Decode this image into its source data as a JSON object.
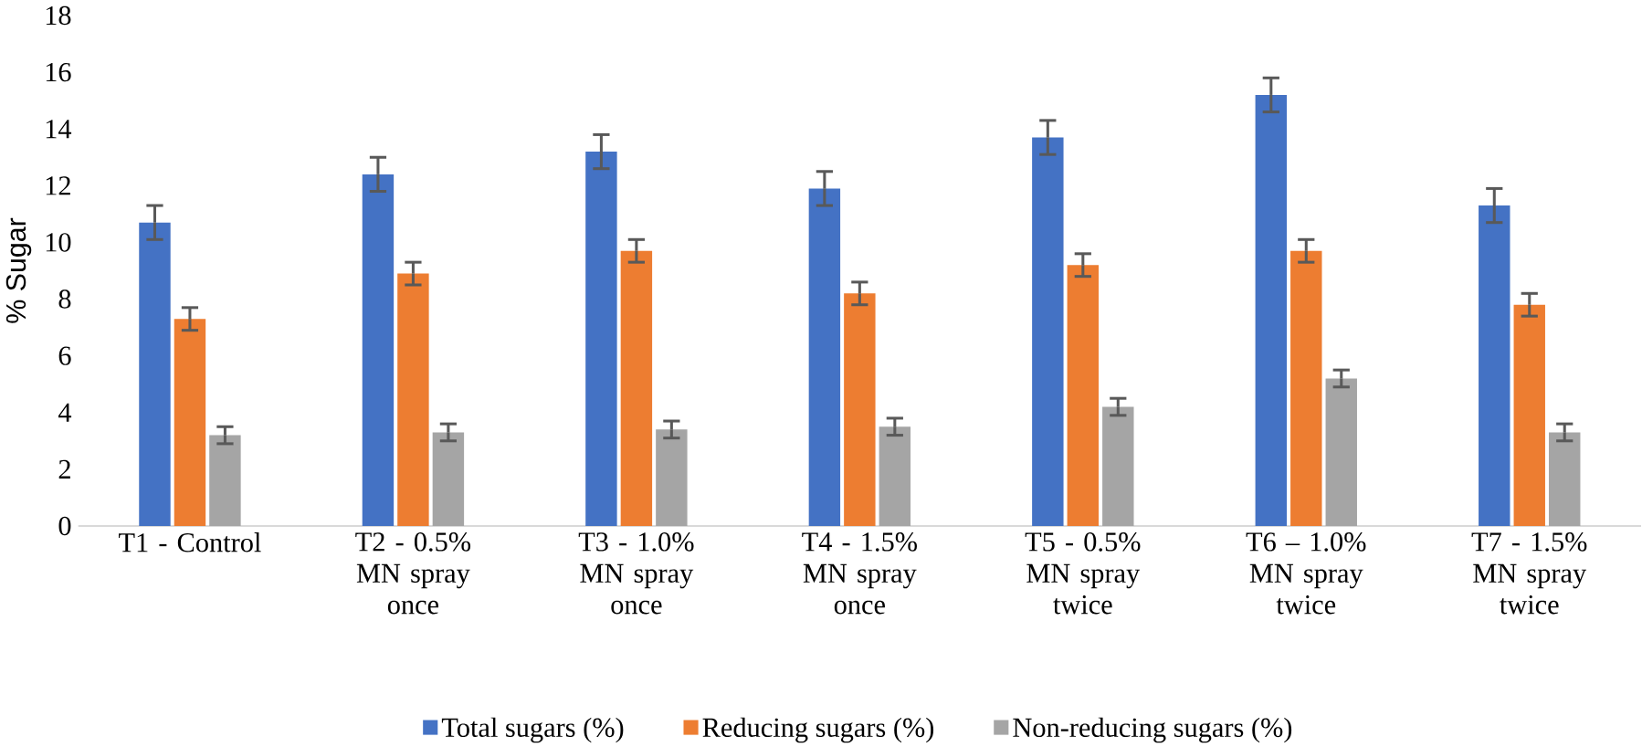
{
  "chart_data": {
    "type": "bar",
    "ylabel": "% Sugar",
    "categories": [
      "T1 - Control",
      "T2 - 0.5% MN spray once",
      "T3 - 1.0% MN spray once",
      "T4 - 1.5% MN spray once",
      "T5 - 0.5% MN spray twice",
      "T6 – 1.0% MN spray twice",
      "T7 - 1.5% MN spray twice"
    ],
    "series": [
      {
        "name": "Total sugars (%)",
        "color": "#4472c4",
        "values": [
          10.7,
          12.4,
          13.2,
          11.9,
          13.7,
          15.2,
          11.3
        ],
        "errors": [
          0.6,
          0.6,
          0.6,
          0.6,
          0.6,
          0.6,
          0.6
        ]
      },
      {
        "name": "Reducing sugars (%)",
        "color": "#ed7d31",
        "values": [
          7.3,
          8.9,
          9.7,
          8.2,
          9.2,
          9.7,
          7.8
        ],
        "errors": [
          0.4,
          0.4,
          0.4,
          0.4,
          0.4,
          0.4,
          0.4
        ]
      },
      {
        "name": "Non-reducing sugars (%)",
        "color": "#a5a5a5",
        "values": [
          3.2,
          3.3,
          3.4,
          3.5,
          4.2,
          5.2,
          3.3
        ],
        "errors": [
          0.3,
          0.3,
          0.3,
          0.3,
          0.3,
          0.3,
          0.3
        ]
      }
    ],
    "ylim": [
      0,
      18
    ],
    "yticks": [
      0,
      2,
      4,
      6,
      8,
      10,
      12,
      14,
      16,
      18
    ],
    "grid": false,
    "legend": "bottom"
  }
}
